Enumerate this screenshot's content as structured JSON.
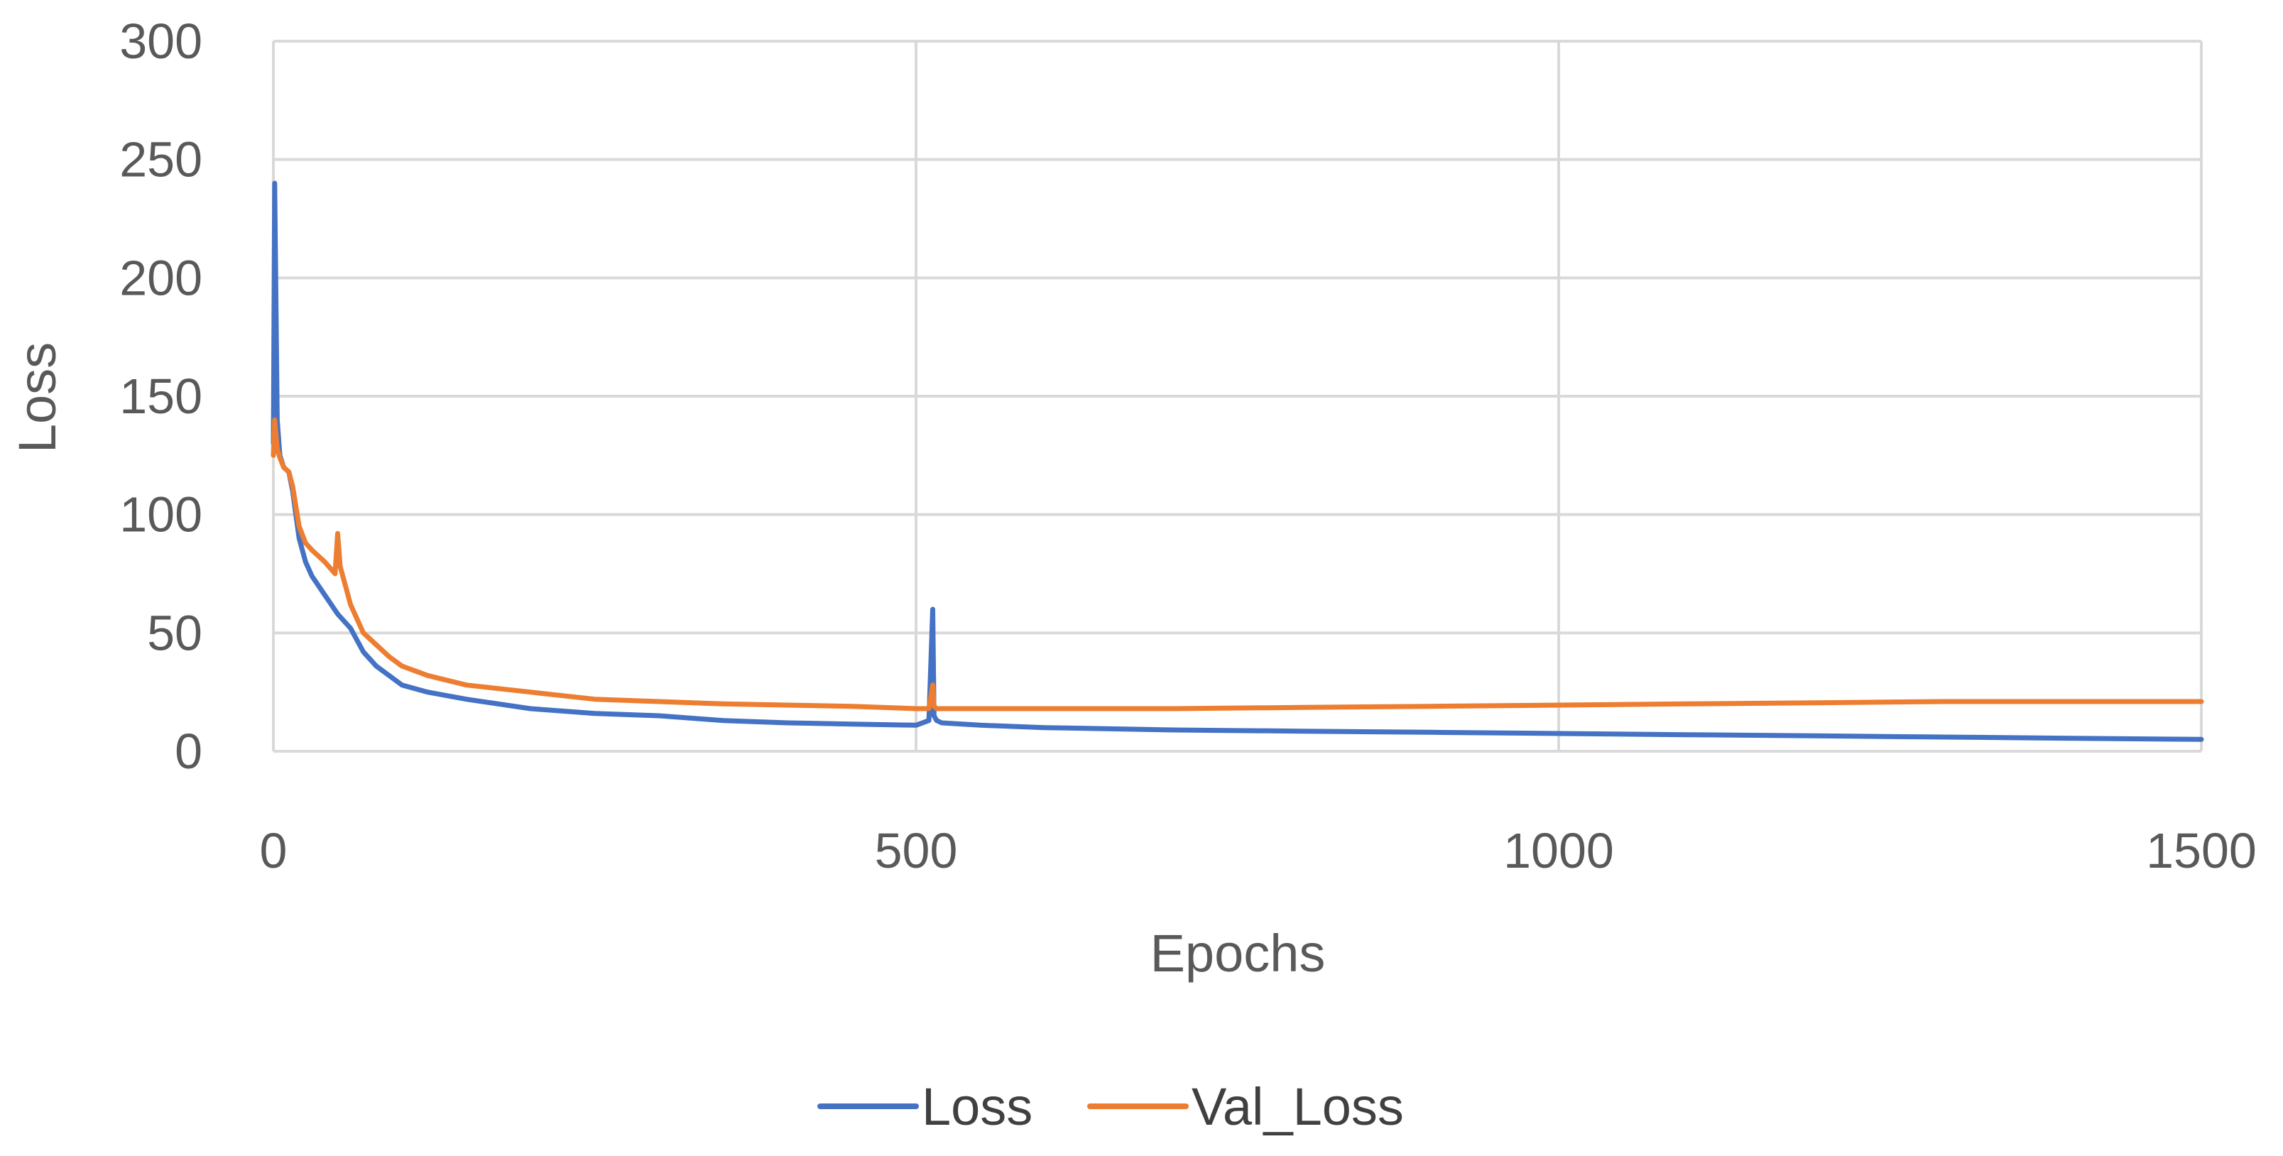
{
  "chart_data": {
    "type": "line",
    "xlabel": "Epochs",
    "ylabel": "Loss",
    "xlim": [
      0,
      1500
    ],
    "ylim": [
      0,
      300
    ],
    "xticks": [
      0,
      500,
      1000,
      1500
    ],
    "yticks": [
      0,
      50,
      100,
      150,
      200,
      250,
      300
    ],
    "grid": true,
    "legend_position": "bottom",
    "series": [
      {
        "name": "Loss",
        "color": "#4472C4",
        "x": [
          0,
          1,
          3,
          5,
          8,
          12,
          15,
          20,
          25,
          30,
          40,
          50,
          60,
          70,
          80,
          90,
          100,
          120,
          150,
          200,
          250,
          300,
          350,
          400,
          450,
          500,
          510,
          513,
          514,
          516,
          520,
          550,
          600,
          700,
          800,
          900,
          1000,
          1100,
          1200,
          1300,
          1400,
          1500
        ],
        "values": [
          130,
          240,
          140,
          125,
          120,
          118,
          110,
          90,
          80,
          74,
          66,
          58,
          52,
          42,
          36,
          32,
          28,
          25,
          22,
          18,
          16,
          15,
          13,
          12,
          11.5,
          11,
          13,
          60,
          15,
          13,
          12,
          11,
          10,
          9,
          8.5,
          8,
          7.5,
          7,
          6.5,
          6,
          5.5,
          5
        ]
      },
      {
        "name": "Val_Loss",
        "color": "#ED7D31",
        "x": [
          0,
          1,
          3,
          5,
          8,
          12,
          15,
          20,
          25,
          30,
          40,
          48,
          50,
          52,
          55,
          60,
          65,
          70,
          80,
          90,
          100,
          120,
          150,
          200,
          250,
          300,
          350,
          400,
          450,
          500,
          510,
          513,
          514,
          516,
          520,
          550,
          600,
          700,
          800,
          900,
          1000,
          1100,
          1200,
          1300,
          1400,
          1500
        ],
        "values": [
          125,
          140,
          128,
          124,
          120,
          118,
          112,
          95,
          88,
          85,
          80,
          75,
          92,
          78,
          72,
          62,
          56,
          50,
          45,
          40,
          36,
          32,
          28,
          25,
          22,
          21,
          20,
          19.5,
          19,
          18,
          18,
          28,
          19,
          18,
          18,
          18,
          18,
          18,
          18.5,
          19,
          19.5,
          20,
          20.5,
          21,
          21,
          21
        ]
      }
    ]
  }
}
